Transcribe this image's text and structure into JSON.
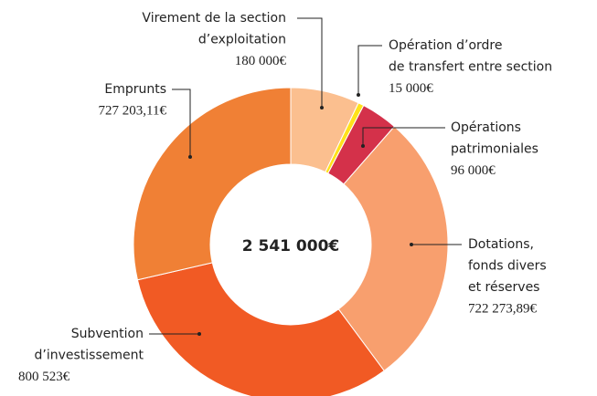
{
  "chart_data": {
    "type": "donut",
    "categories": [
      "Virement de la section\nd’exploitation",
      "Opération d’ordre\nde transfert entre section",
      "Opérations\npatrimoniales",
      "Dotations,\nfonds divers\net réserves",
      "Subvention\nd’investissement",
      "Emprunts"
    ],
    "values": [
      180000,
      15000,
      96000,
      722273.89,
      800523,
      727203.11
    ],
    "value_labels": [
      "180 000€",
      "15 000€",
      "96 000€",
      "722 273,89€",
      "800 523€",
      "727 203,11€"
    ],
    "colors": [
      "#fbbf8f",
      "#ffe21a",
      "#d4314a",
      "#f89f6e",
      "#f15a24",
      "#f08035"
    ],
    "center_label": "2 541 000€"
  }
}
